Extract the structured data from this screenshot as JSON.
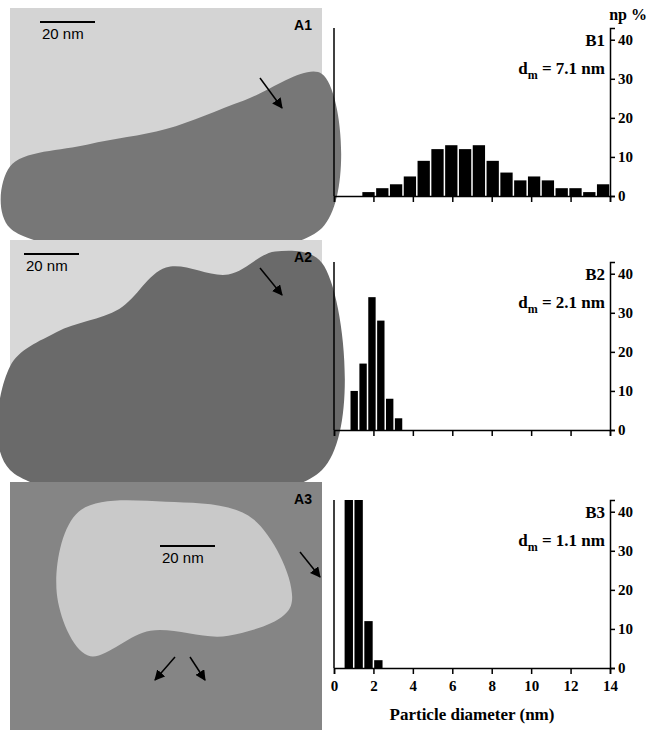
{
  "images": [
    {
      "label": "A1",
      "scale_bar": "20 nm"
    },
    {
      "label": "A2",
      "scale_bar": "20 nm"
    },
    {
      "label": "A3",
      "scale_bar": "20 nm"
    }
  ],
  "chart_data": [
    {
      "type": "histogram",
      "label": "B1",
      "annotation": [
        "d",
        "m",
        " = 7.1 nm"
      ],
      "y_label": "np %",
      "bins": [
        1.4,
        2.1,
        2.8,
        3.5,
        4.2,
        4.9,
        5.6,
        6.3,
        7.0,
        7.7,
        8.4,
        9.1,
        9.8,
        10.5,
        11.2,
        11.9,
        12.6,
        13.3,
        14.0
      ],
      "values": [
        1,
        2,
        3,
        5,
        9,
        12,
        13,
        12,
        13,
        9,
        6,
        4,
        5,
        4,
        2,
        2,
        1,
        3
      ],
      "color": "#000000",
      "xlim": [
        0,
        14
      ],
      "xticks": [
        0,
        2,
        4,
        6,
        8,
        10,
        12,
        14
      ],
      "ylim": [
        0,
        43
      ],
      "yticks": [
        0,
        10,
        20,
        30,
        40
      ],
      "tick_labels": "y"
    },
    {
      "type": "histogram",
      "label": "B2",
      "annotation": [
        "d",
        "m",
        " = 2.1 nm"
      ],
      "bins": [
        0.8,
        1.25,
        1.7,
        2.15,
        2.6,
        3.05,
        3.5
      ],
      "values": [
        10,
        17,
        34,
        28,
        8,
        3
      ],
      "color": "#000000",
      "xlim": [
        0,
        14
      ],
      "xticks": [
        0,
        2,
        4,
        6,
        8,
        10,
        12,
        14
      ],
      "ylim": [
        0,
        43
      ],
      "yticks": [
        0,
        10,
        20,
        30,
        40
      ],
      "tick_labels": "y"
    },
    {
      "type": "histogram",
      "label": "B3",
      "annotation": [
        "d",
        "m",
        " = 1.1 nm"
      ],
      "x_label": "Particle diameter (nm)",
      "bins": [
        0.5,
        1.0,
        1.5,
        2.0,
        2.5
      ],
      "values": [
        43,
        43,
        12,
        2
      ],
      "color": "#000000",
      "xlim": [
        0,
        14
      ],
      "xticks": [
        0,
        2,
        4,
        6,
        8,
        10,
        12,
        14
      ],
      "ylim": [
        0,
        43
      ],
      "yticks": [
        0,
        10,
        20,
        30,
        40
      ],
      "tick_labels": true
    }
  ]
}
